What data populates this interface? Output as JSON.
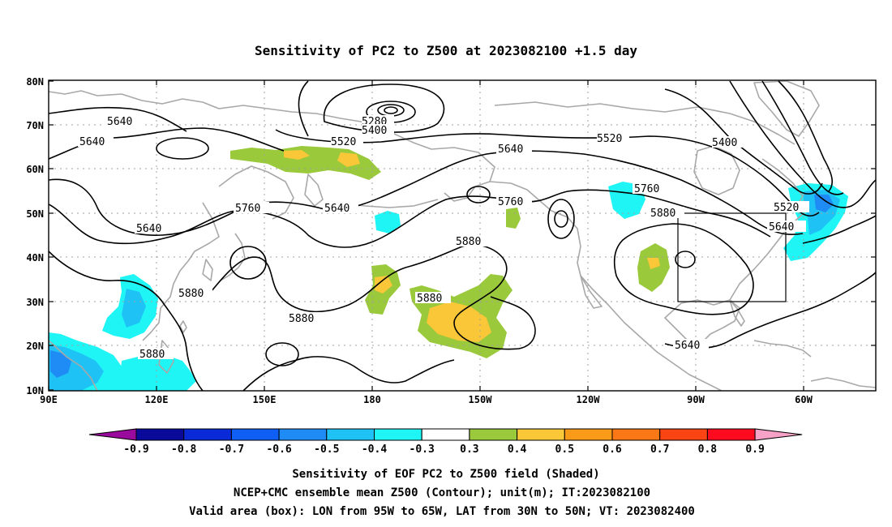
{
  "title": "Sensitivity of PC2 to Z500 at 2023082100 +1.5 day",
  "map": {
    "lon_ticks": [
      "90E",
      "120E",
      "150E",
      "180",
      "150W",
      "120W",
      "90W",
      "60W"
    ],
    "lat_ticks": [
      "10N",
      "20N",
      "30N",
      "40N",
      "50N",
      "60N",
      "70N",
      "80N"
    ],
    "grid": true,
    "projection": "cylindrical equidistant",
    "contour_labels": [
      "5280",
      "5400",
      "5400",
      "5520",
      "5520",
      "5520",
      "5640",
      "5640",
      "5640",
      "5640",
      "5640",
      "5640",
      "5760",
      "5760",
      "5760",
      "5880",
      "5880",
      "5880",
      "5880",
      "5880",
      "5880",
      "5640"
    ],
    "valid_box": {
      "lon_min": "95W",
      "lon_max": "65W",
      "lat_min": "30N",
      "lat_max": "50N"
    }
  },
  "colorbar": {
    "labels": [
      "-0.9",
      "-0.8",
      "-0.7",
      "-0.6",
      "-0.5",
      "-0.4",
      "-0.3",
      "0.3",
      "0.4",
      "0.5",
      "0.6",
      "0.7",
      "0.8",
      "0.9"
    ],
    "colors": [
      "#9a0a9c",
      "#0a0a9a",
      "#0a2ad8",
      "#0f5ff5",
      "#1f8cf5",
      "#1fc2f5",
      "#1ff5f5",
      "#ffffff",
      "#9ac93c",
      "#f9c738",
      "#f99a18",
      "#f97714",
      "#f94414",
      "#ff0a1e",
      "#f7a2c6"
    ]
  },
  "caption": {
    "line1": "Sensitivity of EOF PC2 to Z500 field (Shaded)",
    "line2": "NCEP+CMC ensemble mean Z500 (Contour); unit(m); IT:2023082100",
    "line3": "Valid area (box): LON from 95W to 65W, LAT from 30N to 50N; VT: 2023082400"
  }
}
